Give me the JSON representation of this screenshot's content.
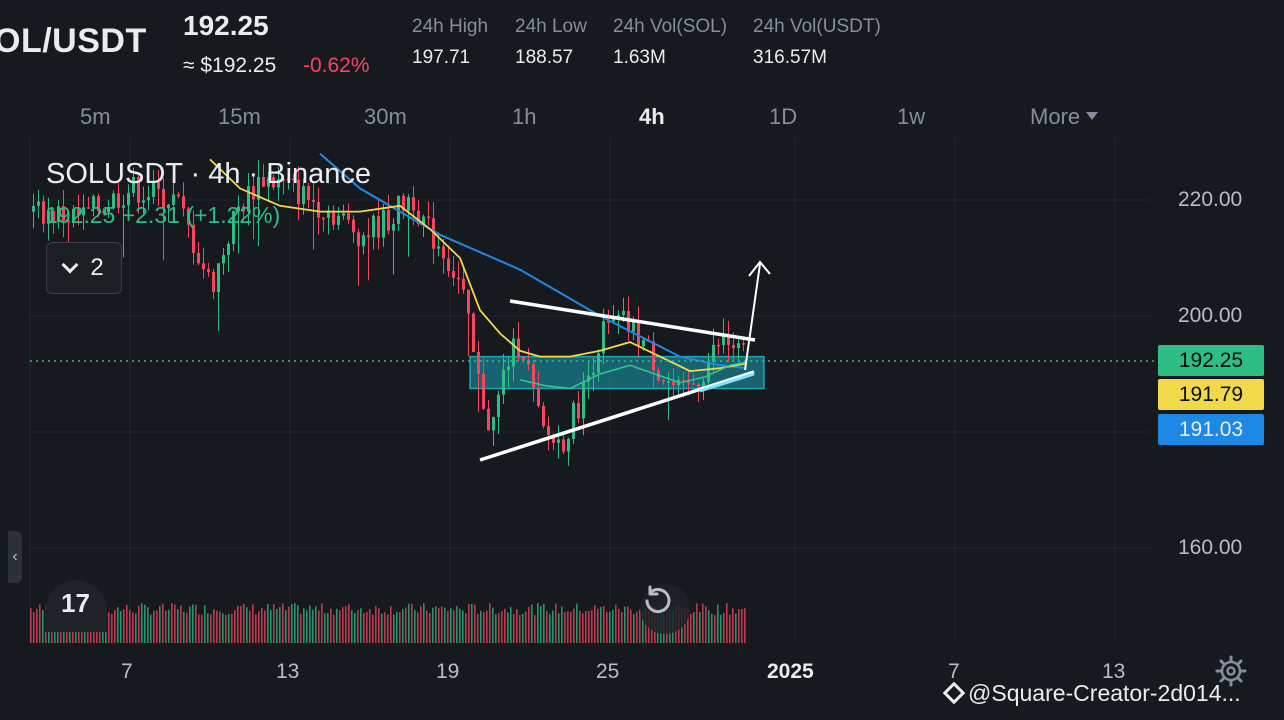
{
  "header": {
    "pair": "OL/USDT",
    "last_price": "192.25",
    "approx_price": "≈ $192.25",
    "change_pct": "-0.62%",
    "stats": [
      {
        "label": "24h High",
        "value": "197.71"
      },
      {
        "label": "24h Low",
        "value": "188.57"
      },
      {
        "label": "24h Vol(SOL)",
        "value": "1.63M"
      },
      {
        "label": "24h Vol(USDT)",
        "value": "316.57M"
      }
    ]
  },
  "tabs": [
    {
      "label": "5m"
    },
    {
      "label": "15m"
    },
    {
      "label": "30m"
    },
    {
      "label": "1h"
    },
    {
      "label": "4h",
      "active": true
    },
    {
      "label": "1D"
    },
    {
      "label": "1w"
    },
    {
      "label": "More"
    }
  ],
  "legend": {
    "title": "SOLUSDT · 4h · Binance",
    "price_line": "192.25  +2.31 (+1.22%)",
    "collapse_count": "2"
  },
  "tv_logo_text": "17",
  "colors": {
    "up": "#2ebd85",
    "down": "#f6465d",
    "ma_fast": "#f0d94a",
    "ma_mid": "#36c68e",
    "ma_slow": "#1e88e5",
    "zone": "#1aa3b5"
  },
  "chart_data": {
    "type": "candlestick",
    "y_ticks": [
      "220.00",
      "200.00",
      "160.00"
    ],
    "x_ticks": [
      "7",
      "13",
      "19",
      "25",
      "2025",
      "7",
      "13"
    ],
    "ylim": [
      152,
      228
    ],
    "price_tags": [
      {
        "label": "192.25",
        "value": 192.25,
        "color": "#2ebd85",
        "text_color": "#0b0e11"
      },
      {
        "label": "191.79",
        "value": 191.79,
        "color": "#f0d94a",
        "text_color": "#0b0e11"
      },
      {
        "label": "191.03",
        "value": 191.03,
        "color": "#1e88e5",
        "text_color": "#eaecef"
      }
    ],
    "current_price": 192.25,
    "zone": [
      187.5,
      193
    ]
  },
  "watermark": "@Square-Creator-2d014..."
}
